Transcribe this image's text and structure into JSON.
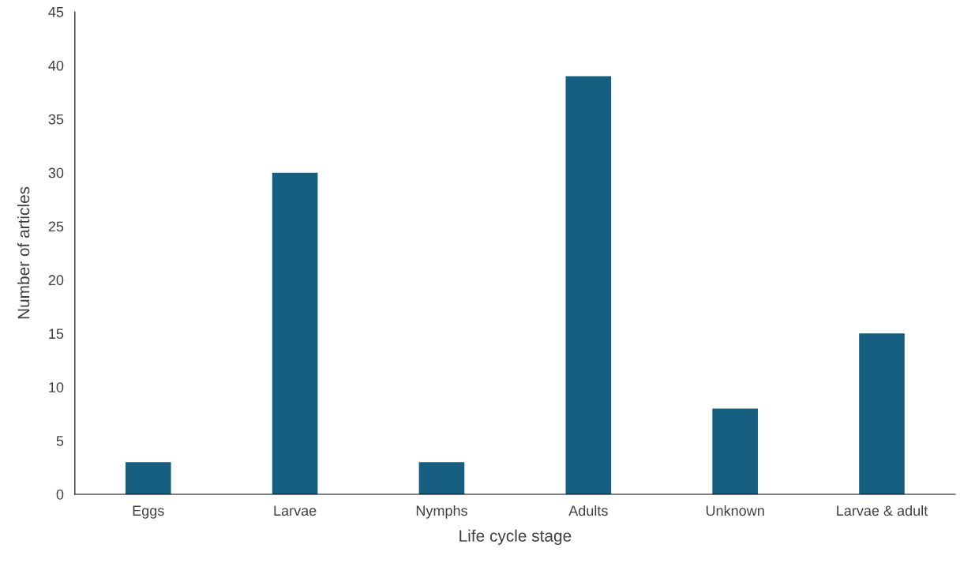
{
  "chart_data": {
    "type": "bar",
    "xlabel": "Life cycle stage",
    "ylabel": "Number of articles",
    "categories": [
      "Eggs",
      "Larvae",
      "Nymphs",
      "Adults",
      "Unknown",
      "Larvae & adult"
    ],
    "values": [
      3,
      30,
      3,
      39,
      8,
      15
    ],
    "color": "#175f80",
    "ylim": [
      0,
      45
    ],
    "yticks": [
      0,
      5,
      10,
      15,
      20,
      25,
      30,
      35,
      40,
      45
    ],
    "grid": false,
    "legend": false
  }
}
